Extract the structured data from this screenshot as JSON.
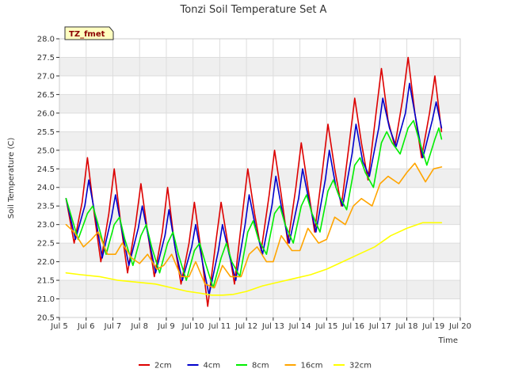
{
  "chart_data": {
    "type": "line",
    "title": "Tonzi Soil Temperature Set A",
    "xlabel": "Time",
    "ylabel": "Soil Temperature (C)",
    "xlim": [
      5,
      20
    ],
    "ylim": [
      20.5,
      28.0
    ],
    "x_ticks": [
      5,
      6,
      7,
      8,
      9,
      10,
      11,
      12,
      13,
      14,
      15,
      16,
      17,
      18,
      19,
      20
    ],
    "x_tick_labels": [
      "Jul 5",
      "Jul 6",
      "Jul 7",
      "Jul 8",
      "Jul 9",
      "Jul 10",
      "Jul 11",
      "Jul 12",
      "Jul 13",
      "Jul 14",
      "Jul 15",
      "Jul 16",
      "Jul 17",
      "Jul 18",
      "Jul 19",
      "Jul 20"
    ],
    "y_ticks": [
      20.5,
      21.0,
      21.5,
      22.0,
      22.5,
      23.0,
      23.5,
      24.0,
      24.5,
      25.0,
      25.5,
      26.0,
      26.5,
      27.0,
      27.5,
      28.0
    ],
    "y_tick_labels": [
      "20.5",
      "21.0",
      "21.5",
      "22.0",
      "22.5",
      "23.0",
      "23.5",
      "24.0",
      "24.5",
      "25.0",
      "25.5",
      "26.0",
      "26.5",
      "27.0",
      "27.5",
      "28.0"
    ],
    "grid": true,
    "legend_position": "bottom",
    "annotation": "TZ_fmet",
    "series": [
      {
        "name": "2cm",
        "color": "#dd0000",
        "x": [
          5.25,
          5.55,
          5.85,
          6.05,
          6.3,
          6.55,
          6.85,
          7.05,
          7.3,
          7.55,
          7.85,
          8.05,
          8.3,
          8.55,
          8.85,
          9.05,
          9.3,
          9.55,
          9.85,
          10.05,
          10.3,
          10.55,
          10.85,
          11.05,
          11.3,
          11.55,
          11.85,
          12.05,
          12.3,
          12.55,
          12.85,
          13.05,
          13.3,
          13.55,
          13.85,
          14.05,
          14.3,
          14.55,
          14.85,
          15.05,
          15.3,
          15.55,
          15.85,
          16.05,
          16.3,
          16.55,
          16.85,
          17.05,
          17.3,
          17.55,
          17.85,
          18.05,
          18.3,
          18.55,
          18.85,
          19.05,
          19.3
        ],
        "y": [
          23.7,
          22.5,
          23.6,
          24.8,
          23.3,
          22.0,
          23.3,
          24.5,
          23.0,
          21.7,
          23.0,
          24.1,
          22.8,
          21.6,
          22.8,
          24.0,
          22.5,
          21.4,
          22.5,
          23.6,
          22.3,
          20.8,
          22.5,
          23.6,
          22.5,
          21.4,
          23.3,
          24.5,
          23.3,
          22.3,
          23.8,
          25.0,
          23.8,
          22.5,
          24.0,
          25.2,
          24.0,
          22.8,
          24.5,
          25.7,
          24.5,
          23.5,
          25.2,
          26.4,
          25.2,
          24.2,
          26.0,
          27.2,
          25.8,
          25.1,
          26.4,
          27.5,
          26.0,
          24.8,
          26.0,
          27.0,
          25.5
        ]
      },
      {
        "name": "4cm",
        "color": "#0000cc",
        "x": [
          5.25,
          5.6,
          5.95,
          6.1,
          6.35,
          6.6,
          6.95,
          7.1,
          7.35,
          7.6,
          7.95,
          8.1,
          8.35,
          8.6,
          8.95,
          9.1,
          9.35,
          9.6,
          9.95,
          10.1,
          10.35,
          10.6,
          10.95,
          11.1,
          11.35,
          11.6,
          11.95,
          12.1,
          12.35,
          12.6,
          12.95,
          13.1,
          13.35,
          13.6,
          13.95,
          14.1,
          14.35,
          14.6,
          14.95,
          15.1,
          15.35,
          15.6,
          15.95,
          16.1,
          16.35,
          16.6,
          16.95,
          17.1,
          17.35,
          17.6,
          17.95,
          18.1,
          18.35,
          18.6,
          18.95,
          19.1,
          19.3
        ],
        "y": [
          23.7,
          22.6,
          23.5,
          24.2,
          23.2,
          22.1,
          23.2,
          23.8,
          22.8,
          21.9,
          22.9,
          23.5,
          22.6,
          21.7,
          22.7,
          23.4,
          22.3,
          21.5,
          22.4,
          23.0,
          22.0,
          21.1,
          22.3,
          23.0,
          22.2,
          21.5,
          23.0,
          23.8,
          22.9,
          22.2,
          23.5,
          24.3,
          23.3,
          22.5,
          23.7,
          24.5,
          23.6,
          22.8,
          24.2,
          25.0,
          24.0,
          23.5,
          24.9,
          25.7,
          24.7,
          24.3,
          25.6,
          26.4,
          25.6,
          25.1,
          26.0,
          26.8,
          25.8,
          24.8,
          25.8,
          26.3,
          25.6
        ]
      },
      {
        "name": "8cm",
        "color": "#00ee00",
        "x": [
          5.25,
          5.7,
          6.05,
          6.25,
          6.45,
          6.75,
          7.05,
          7.25,
          7.45,
          7.75,
          8.05,
          8.25,
          8.45,
          8.75,
          9.05,
          9.25,
          9.45,
          9.75,
          10.05,
          10.25,
          10.45,
          10.75,
          11.05,
          11.25,
          11.45,
          11.75,
          12.05,
          12.25,
          12.45,
          12.75,
          13.05,
          13.25,
          13.45,
          13.75,
          14.05,
          14.25,
          14.45,
          14.75,
          15.05,
          15.25,
          15.45,
          15.75,
          16.05,
          16.25,
          16.45,
          16.75,
          17.05,
          17.25,
          17.45,
          17.75,
          18.05,
          18.25,
          18.45,
          18.75,
          19.05,
          19.2,
          19.3
        ],
        "y": [
          23.7,
          22.6,
          23.3,
          23.5,
          23.0,
          22.2,
          23.0,
          23.2,
          22.6,
          21.9,
          22.7,
          23.0,
          22.4,
          21.7,
          22.5,
          22.8,
          22.2,
          21.5,
          22.3,
          22.5,
          22.0,
          21.3,
          22.1,
          22.5,
          22.0,
          21.6,
          22.8,
          23.1,
          22.6,
          22.2,
          23.3,
          23.5,
          23.0,
          22.5,
          23.5,
          23.8,
          23.3,
          22.8,
          23.9,
          24.2,
          23.8,
          23.4,
          24.6,
          24.8,
          24.4,
          24.0,
          25.2,
          25.5,
          25.2,
          24.9,
          25.6,
          25.8,
          25.3,
          24.6,
          25.3,
          25.6,
          25.3
        ]
      },
      {
        "name": "16cm",
        "color": "#ffa500",
        "x": [
          5.25,
          5.55,
          5.9,
          6.2,
          6.45,
          6.8,
          7.1,
          7.35,
          7.7,
          8.0,
          8.3,
          8.65,
          8.9,
          9.2,
          9.55,
          9.85,
          10.1,
          10.45,
          10.8,
          11.1,
          11.4,
          11.8,
          12.1,
          12.4,
          12.75,
          13.0,
          13.3,
          13.7,
          14.0,
          14.3,
          14.7,
          15.0,
          15.3,
          15.7,
          16.0,
          16.3,
          16.7,
          17.0,
          17.3,
          17.7,
          18.0,
          18.3,
          18.7,
          19.0,
          19.3
        ],
        "y": [
          23.0,
          22.8,
          22.4,
          22.6,
          22.8,
          22.2,
          22.2,
          22.5,
          22.1,
          21.95,
          22.2,
          21.8,
          21.9,
          22.2,
          21.6,
          21.6,
          22.0,
          21.4,
          21.3,
          21.9,
          21.6,
          21.6,
          22.2,
          22.4,
          22.0,
          22.0,
          22.7,
          22.3,
          22.3,
          22.9,
          22.5,
          22.6,
          23.2,
          23.0,
          23.5,
          23.7,
          23.5,
          24.1,
          24.3,
          24.1,
          24.4,
          24.65,
          24.15,
          24.5,
          24.55
        ]
      },
      {
        "name": "32cm",
        "color": "#ffff00",
        "x": [
          5.25,
          5.8,
          6.5,
          7.2,
          7.9,
          8.6,
          9.2,
          9.8,
          10.3,
          10.7,
          11.1,
          11.5,
          12.0,
          12.6,
          13.2,
          13.8,
          14.4,
          15.0,
          15.6,
          16.2,
          16.8,
          17.4,
          18.0,
          18.6,
          19.3
        ],
        "y": [
          21.7,
          21.65,
          21.6,
          21.5,
          21.45,
          21.4,
          21.3,
          21.2,
          21.15,
          21.1,
          21.1,
          21.12,
          21.2,
          21.35,
          21.45,
          21.55,
          21.65,
          21.8,
          22.0,
          22.2,
          22.4,
          22.7,
          22.9,
          23.05,
          23.05
        ]
      }
    ]
  }
}
